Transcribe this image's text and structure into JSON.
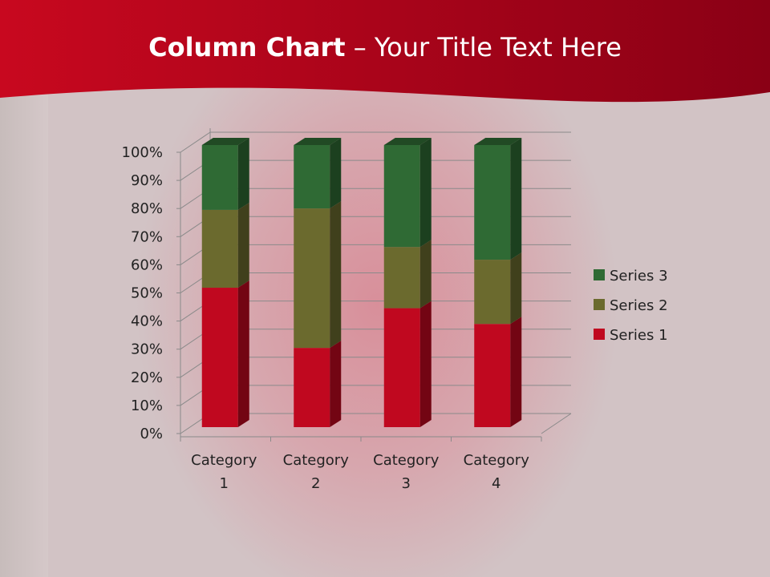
{
  "slide": {
    "title_bold": "Column Chart",
    "title_rest": " – Your Title Text Here",
    "header_color": "#b0061e"
  },
  "chart_data": {
    "type": "bar",
    "subtype": "100% stacked 3-D column",
    "categories": [
      "Category 1",
      "Category 2",
      "Category 3",
      "Category 4"
    ],
    "series": [
      {
        "name": "Series 1",
        "values": [
          4.3,
          2.5,
          3.5,
          4.5
        ],
        "color": "#c0081f"
      },
      {
        "name": "Series 2",
        "values": [
          2.4,
          4.4,
          1.8,
          2.8
        ],
        "color": "#6b6a2e"
      },
      {
        "name": "Series 3",
        "values": [
          2.0,
          2.0,
          3.0,
          5.0
        ],
        "color": "#2f6a34"
      }
    ],
    "y_ticks": [
      "0%",
      "10%",
      "20%",
      "30%",
      "40%",
      "50%",
      "60%",
      "70%",
      "80%",
      "90%",
      "100%"
    ],
    "ylim": [
      0,
      100
    ],
    "grid": true,
    "legend": "right"
  }
}
